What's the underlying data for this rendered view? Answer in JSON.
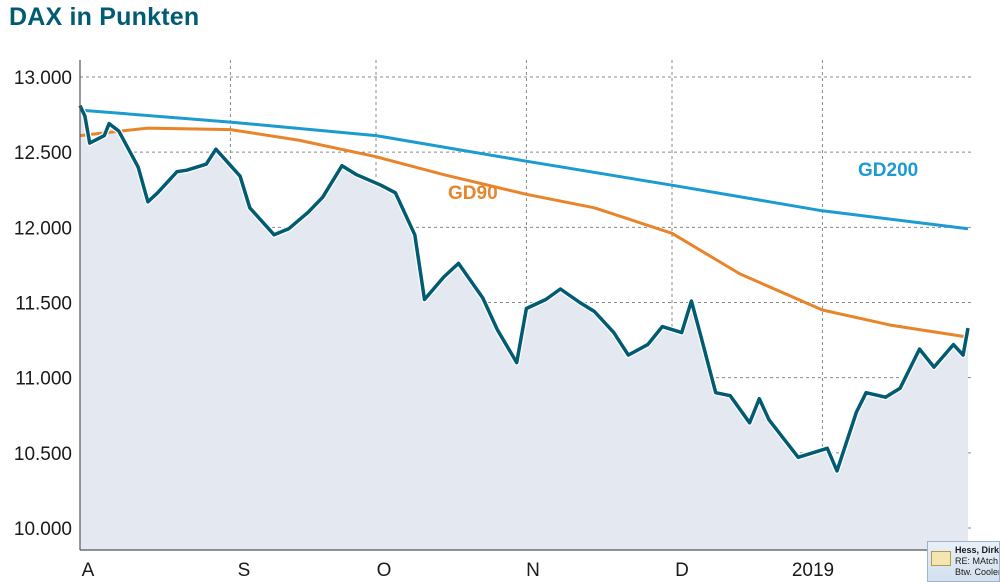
{
  "chart_data": {
    "type": "line",
    "title": "DAX in Punkten",
    "ylim": [
      10000,
      13000
    ],
    "y_ticks": [
      "13.000",
      "12.500",
      "12.000",
      "11.500",
      "11.000",
      "10.500",
      "10.000"
    ],
    "y_tick_values": [
      13000,
      12500,
      12000,
      11500,
      11000,
      10500,
      10000
    ],
    "x_ticks": [
      "A",
      "S",
      "O",
      "N",
      "D",
      "2019"
    ],
    "grid": true,
    "series": [
      {
        "name": "DAX",
        "color": "#005b73",
        "fill": "#e4e9f1",
        "x": [
          "2018-08-01",
          "2018-08-02",
          "2018-08-03",
          "2018-08-06",
          "2018-08-07",
          "2018-08-09",
          "2018-08-13",
          "2018-08-15",
          "2018-08-17",
          "2018-08-21",
          "2018-08-23",
          "2018-08-27",
          "2018-08-29",
          "2018-09-03",
          "2018-09-05",
          "2018-09-10",
          "2018-09-13",
          "2018-09-17",
          "2018-09-20",
          "2018-09-24",
          "2018-09-27",
          "2018-10-02",
          "2018-10-05",
          "2018-10-09",
          "2018-10-11",
          "2018-10-15",
          "2018-10-18",
          "2018-10-23",
          "2018-10-26",
          "2018-10-30",
          "2018-11-01",
          "2018-11-05",
          "2018-11-08",
          "2018-11-12",
          "2018-11-15",
          "2018-11-19",
          "2018-11-22",
          "2018-11-26",
          "2018-11-29",
          "2018-12-03",
          "2018-12-05",
          "2018-12-07",
          "2018-12-10",
          "2018-12-13",
          "2018-12-17",
          "2018-12-19",
          "2018-12-21",
          "2018-12-27",
          "2019-01-02",
          "2019-01-04",
          "2019-01-08",
          "2019-01-10",
          "2019-01-14",
          "2019-01-17",
          "2019-01-21",
          "2019-01-24",
          "2019-01-28",
          "2019-01-30",
          "2019-01-31"
        ],
        "values": [
          12810,
          12740,
          12560,
          12610,
          12690,
          12640,
          12400,
          12170,
          12230,
          12370,
          12380,
          12420,
          12520,
          12340,
          12130,
          11950,
          11990,
          12100,
          12200,
          12410,
          12350,
          12280,
          12230,
          11950,
          11520,
          11670,
          11760,
          11530,
          11320,
          11100,
          11460,
          11520,
          11590,
          11500,
          11440,
          11300,
          11150,
          11220,
          11340,
          11300,
          11510,
          11270,
          10900,
          10880,
          10700,
          10860,
          10720,
          10470,
          10530,
          10380,
          10770,
          10900,
          10870,
          10930,
          11190,
          11070,
          11220,
          11150,
          11330
        ]
      },
      {
        "name": "GD90",
        "color": "#e8842a",
        "x": [
          "2018-08-01",
          "2018-08-15",
          "2018-09-01",
          "2018-09-15",
          "2018-10-01",
          "2018-10-15",
          "2018-11-01",
          "2018-11-15",
          "2018-12-01",
          "2018-12-15",
          "2019-01-01",
          "2019-01-15",
          "2019-01-31"
        ],
        "values": [
          12610,
          12660,
          12650,
          12580,
          12470,
          12350,
          12220,
          12130,
          11960,
          11690,
          11450,
          11350,
          11270
        ]
      },
      {
        "name": "GD200",
        "color": "#1c9bd1",
        "x": [
          "2018-08-01",
          "2018-09-01",
          "2018-10-01",
          "2018-11-01",
          "2018-12-01",
          "2019-01-01",
          "2019-01-31"
        ],
        "values": [
          12780,
          12700,
          12610,
          12440,
          12280,
          12110,
          11990
        ]
      }
    ]
  },
  "notification": {
    "sender": "Hess, Dirk",
    "subject": "RE: MAtch",
    "preview": "Btw. Cooler"
  }
}
